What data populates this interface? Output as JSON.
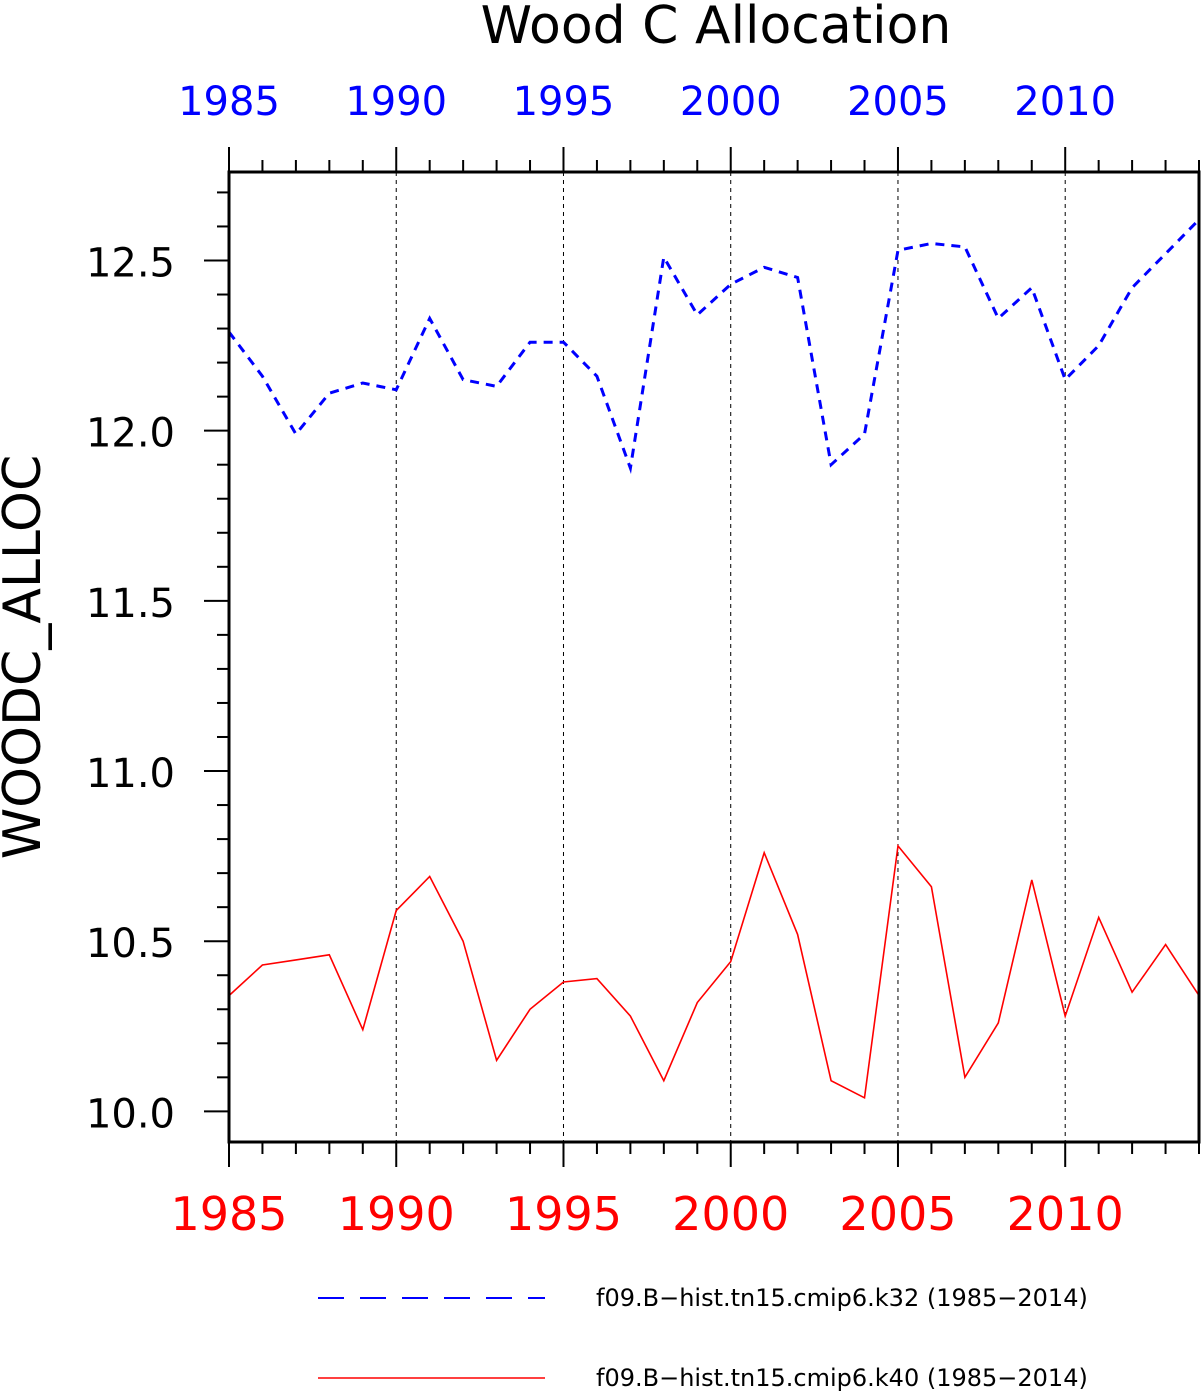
{
  "chart_data": {
    "type": "line",
    "title": "Wood C Allocation",
    "xlabel": "",
    "ylabel": "WOODC_ALLOC",
    "x": [
      1985,
      1986,
      1987,
      1988,
      1989,
      1990,
      1991,
      1992,
      1993,
      1994,
      1995,
      1996,
      1997,
      1998,
      1999,
      2000,
      2001,
      2002,
      2003,
      2004,
      2005,
      2006,
      2007,
      2008,
      2009,
      2010,
      2011,
      2012,
      2013,
      2014
    ],
    "xlim": [
      1985,
      2014
    ],
    "ylim": [
      9.91,
      12.76
    ],
    "y_ticks": [
      "10.0",
      "10.5",
      "11.0",
      "11.5",
      "12.0",
      "12.5"
    ],
    "top_x_ticks": [
      "1985",
      "1990",
      "1995",
      "2000",
      "2005",
      "2010"
    ],
    "bottom_x_ticks": [
      "1985",
      "1990",
      "1995",
      "2000",
      "2005",
      "2010"
    ],
    "top_axis_color": "#0000ff",
    "bottom_axis_color": "#ff0000",
    "vertical_grid": "dashed, at major x ticks",
    "legend_position": "below plot",
    "series": [
      {
        "name": "f09.B−hist.tn15.cmip6.k32 (1985−2014)",
        "color": "#0000ff",
        "style": "dashed",
        "values": [
          12.29,
          12.16,
          11.99,
          12.11,
          12.14,
          12.12,
          12.33,
          12.15,
          12.13,
          12.26,
          12.26,
          12.16,
          11.89,
          12.51,
          12.34,
          12.43,
          12.48,
          12.45,
          11.9,
          11.99,
          12.53,
          12.55,
          12.54,
          12.33,
          12.42,
          12.15,
          12.25,
          12.42,
          12.52,
          12.62
        ]
      },
      {
        "name": "f09.B−hist.tn15.cmip6.k40 (1985−2014)",
        "color": "#ff0000",
        "style": "solid",
        "values": [
          10.34,
          10.43,
          10.445,
          10.46,
          10.24,
          10.59,
          10.69,
          10.5,
          10.15,
          10.3,
          10.38,
          10.39,
          10.28,
          10.09,
          10.32,
          10.44,
          10.76,
          10.52,
          10.09,
          10.04,
          10.78,
          10.66,
          10.1,
          10.26,
          10.68,
          10.28,
          10.57,
          10.35,
          10.49,
          10.34
        ]
      }
    ]
  }
}
